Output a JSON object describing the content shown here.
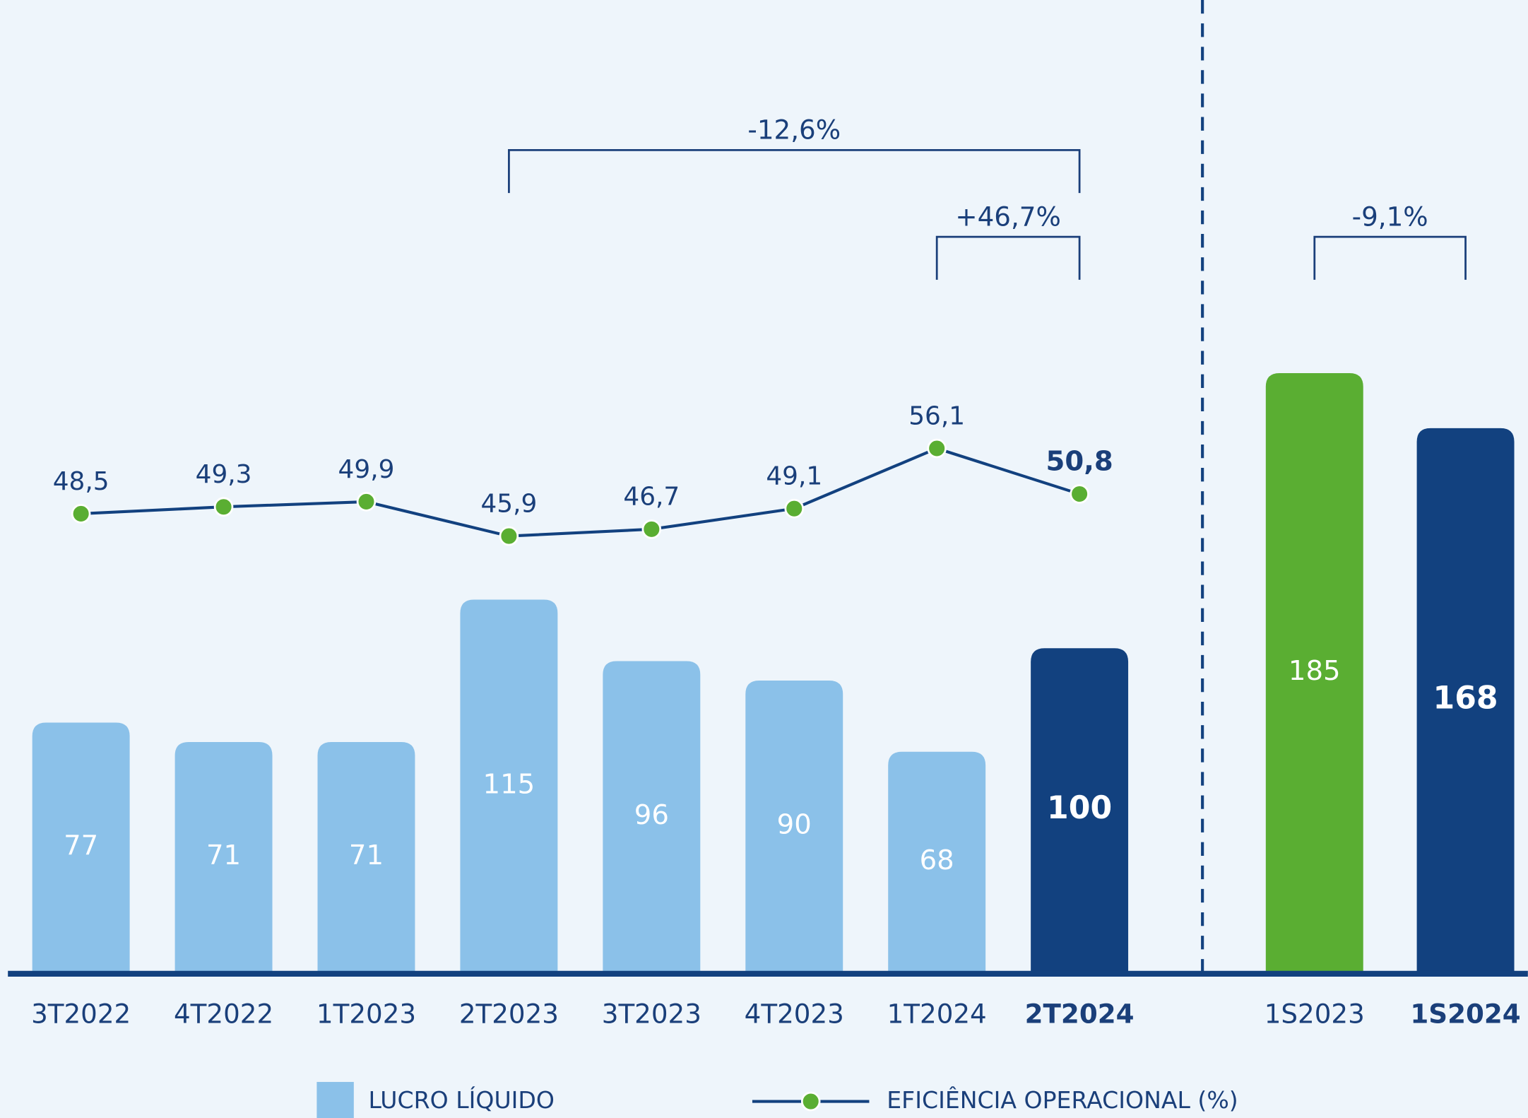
{
  "chart_data": {
    "type": "bar",
    "categories": [
      "3T2022",
      "4T2022",
      "1T2023",
      "2T2023",
      "3T2023",
      "4T2023",
      "1T2024",
      "2T2024",
      "1S2023",
      "1S2024"
    ],
    "bold_categories": [
      "2T2024",
      "1S2024"
    ],
    "series": [
      {
        "name": "LUCRO LÍQUIDO",
        "type": "bar",
        "color": "#8bc1e9",
        "colors": [
          "#8bc1e9",
          "#8bc1e9",
          "#8bc1e9",
          "#8bc1e9",
          "#8bc1e9",
          "#8bc1e9",
          "#8bc1e9",
          "#12417f",
          "#5aae32",
          "#12417f"
        ],
        "values": [
          77,
          71,
          71,
          115,
          96,
          90,
          68,
          100,
          185,
          168
        ]
      },
      {
        "name": "EFICIÊNCIA OPERACIONAL (%)",
        "type": "line",
        "color": "#12417f",
        "marker_color": "#5aae32",
        "values": [
          48.5,
          49.3,
          49.9,
          45.9,
          46.7,
          49.1,
          56.1,
          50.8,
          null,
          null
        ],
        "value_labels": [
          "48,5",
          "49,3",
          "49,9",
          "45,9",
          "46,7",
          "49,1",
          "56,1",
          "50,8",
          null,
          null
        ]
      }
    ],
    "annotations": [
      {
        "label": "-12,6%",
        "from": "2T2023",
        "to": "2T2024"
      },
      {
        "label": "+46,7%",
        "from": "1T2024",
        "to": "2T2024"
      },
      {
        "label": "-9,1%",
        "from": "1S2023",
        "to": "1S2024"
      }
    ]
  }
}
